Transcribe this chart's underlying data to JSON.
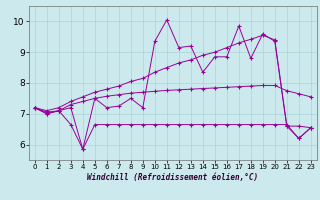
{
  "title": "",
  "xlabel": "Windchill (Refroidissement éolien,°C)",
  "background_color": "#cce9ed",
  "grid_color": "#aad4d8",
  "line_color": "#990099",
  "xlim": [
    -0.5,
    23.5
  ],
  "ylim": [
    5.5,
    10.5
  ],
  "yticks": [
    6,
    7,
    8,
    9,
    10
  ],
  "xticks": [
    0,
    1,
    2,
    3,
    4,
    5,
    6,
    7,
    8,
    9,
    10,
    11,
    12,
    13,
    14,
    15,
    16,
    17,
    18,
    19,
    20,
    21,
    22,
    23
  ],
  "series": {
    "main_jagged": {
      "x": [
        0,
        1,
        2,
        3,
        4,
        5,
        6,
        7,
        8,
        9,
        10,
        11,
        12,
        13,
        14,
        15,
        16,
        17,
        18,
        19,
        20,
        21,
        22,
        23
      ],
      "y": [
        7.2,
        7.0,
        7.1,
        7.2,
        5.85,
        7.5,
        7.2,
        7.25,
        7.5,
        7.2,
        9.35,
        10.05,
        9.15,
        9.2,
        8.35,
        8.85,
        8.85,
        9.85,
        8.8,
        9.6,
        9.35,
        6.6,
        6.2,
        6.55
      ]
    },
    "upper_smooth": {
      "x": [
        0,
        1,
        2,
        3,
        4,
        5,
        6,
        7,
        8,
        9,
        10,
        11,
        12,
        13,
        14,
        15,
        16,
        17,
        18,
        19,
        20,
        21,
        22,
        23
      ],
      "y": [
        7.2,
        7.1,
        7.2,
        7.4,
        7.55,
        7.7,
        7.8,
        7.9,
        8.05,
        8.15,
        8.35,
        8.5,
        8.65,
        8.75,
        8.9,
        9.0,
        9.15,
        9.3,
        9.42,
        9.55,
        9.4,
        6.6,
        6.6,
        6.55
      ]
    },
    "mid_trend": {
      "x": [
        0,
        1,
        2,
        3,
        4,
        5,
        6,
        7,
        8,
        9,
        10,
        11,
        12,
        13,
        14,
        15,
        16,
        17,
        18,
        19,
        20,
        21,
        22,
        23
      ],
      "y": [
        7.2,
        7.05,
        7.1,
        7.3,
        7.4,
        7.5,
        7.57,
        7.62,
        7.67,
        7.7,
        7.73,
        7.76,
        7.78,
        7.8,
        7.82,
        7.84,
        7.86,
        7.88,
        7.9,
        7.92,
        7.92,
        7.75,
        7.65,
        7.55
      ]
    },
    "lower_flat": {
      "x": [
        0,
        1,
        2,
        3,
        4,
        5,
        6,
        7,
        8,
        9,
        10,
        11,
        12,
        13,
        14,
        15,
        16,
        17,
        18,
        19,
        20,
        21,
        22,
        23
      ],
      "y": [
        7.2,
        7.0,
        7.1,
        6.65,
        5.85,
        6.65,
        6.65,
        6.65,
        6.65,
        6.65,
        6.65,
        6.65,
        6.65,
        6.65,
        6.65,
        6.65,
        6.65,
        6.65,
        6.65,
        6.65,
        6.65,
        6.65,
        6.2,
        6.55
      ]
    }
  },
  "xlabel_color": "#330033",
  "xlabel_fontsize": 5.5,
  "tick_fontsize_x": 5.0,
  "tick_fontsize_y": 6.5
}
